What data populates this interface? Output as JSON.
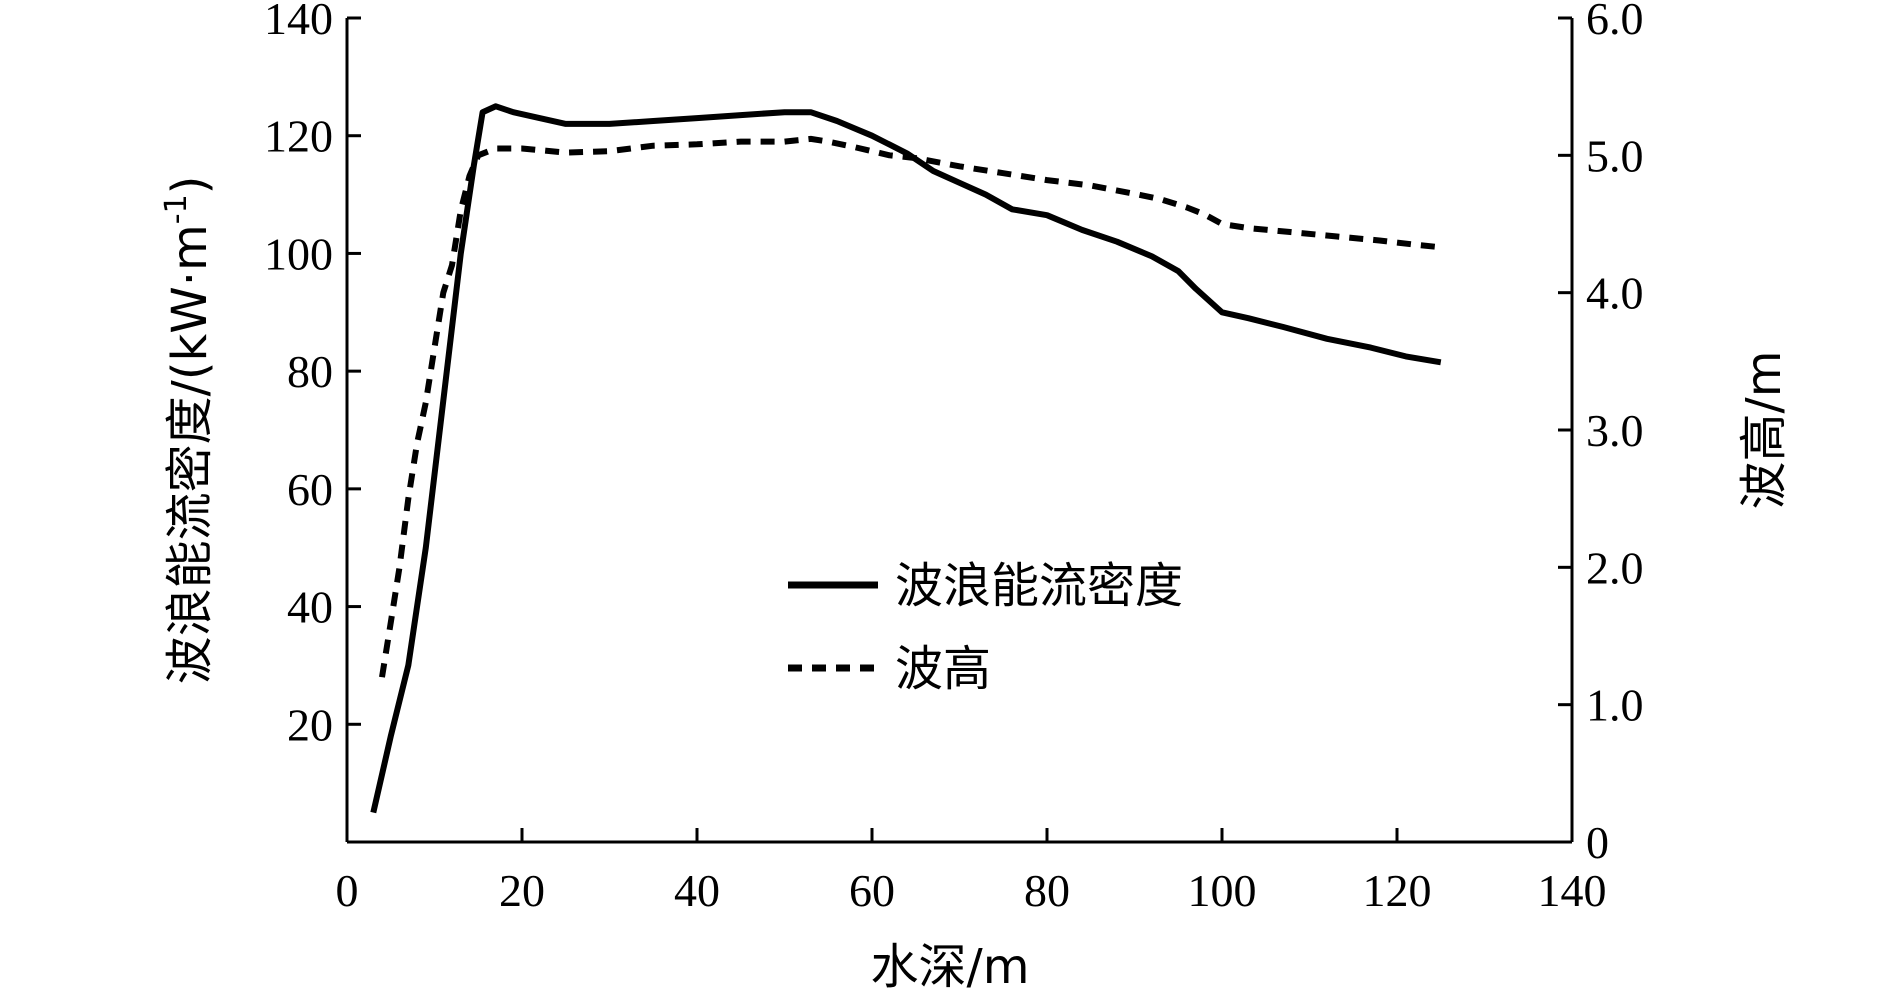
{
  "chart_data": {
    "type": "line",
    "xlabel": "水深/m",
    "ylabel_left": "波浪能流密度/(kW·m",
    "ylabel_left_sup": "-1",
    "ylabel_left_close": ")",
    "ylabel_right": "波高/m",
    "xlim": [
      0,
      140
    ],
    "ylim_left": [
      0,
      140
    ],
    "ylim_right": [
      0,
      6.0
    ],
    "x_ticks": [
      "0",
      "20",
      "40",
      "60",
      "80",
      "100",
      "120",
      "140"
    ],
    "x_tick_values": [
      0,
      20,
      40,
      60,
      80,
      100,
      120,
      140
    ],
    "y_left_ticks": [
      "20",
      "40",
      "60",
      "80",
      "100",
      "120",
      "140"
    ],
    "y_left_tick_values": [
      20,
      40,
      60,
      80,
      100,
      120,
      140
    ],
    "y_right_ticks": [
      "0",
      "1.0",
      "2.0",
      "3.0",
      "4.0",
      "5.0",
      "6.0"
    ],
    "y_right_tick_values": [
      0,
      1,
      2,
      3,
      4,
      5,
      6
    ],
    "legend_position": "center",
    "series": [
      {
        "name": "波浪能流密度",
        "axis": "left",
        "style": "solid",
        "color": "#000000",
        "points": [
          [
            3,
            5
          ],
          [
            5,
            18
          ],
          [
            7,
            30
          ],
          [
            9,
            50
          ],
          [
            11,
            75
          ],
          [
            13,
            100
          ],
          [
            14.5,
            115
          ],
          [
            15.5,
            124
          ],
          [
            17,
            125
          ],
          [
            19,
            124
          ],
          [
            22,
            123
          ],
          [
            25,
            122
          ],
          [
            30,
            122
          ],
          [
            35,
            122.5
          ],
          [
            40,
            123
          ],
          [
            45,
            123.5
          ],
          [
            50,
            124
          ],
          [
            53,
            124
          ],
          [
            56,
            122.5
          ],
          [
            60,
            120
          ],
          [
            64,
            117
          ],
          [
            67,
            114
          ],
          [
            70,
            112
          ],
          [
            73,
            110
          ],
          [
            76,
            107.5
          ],
          [
            80,
            106.5
          ],
          [
            84,
            104
          ],
          [
            88,
            102
          ],
          [
            92,
            99.5
          ],
          [
            95,
            97
          ],
          [
            97,
            94
          ],
          [
            100,
            90
          ],
          [
            103,
            89
          ],
          [
            107,
            87.5
          ],
          [
            112,
            85.5
          ],
          [
            117,
            84
          ],
          [
            121,
            82.5
          ],
          [
            125,
            81.5
          ]
        ]
      },
      {
        "name": "波高",
        "axis": "right",
        "style": "dashed",
        "color": "#000000",
        "points": [
          [
            4,
            1.2
          ],
          [
            5,
            1.6
          ],
          [
            6,
            2.0
          ],
          [
            7,
            2.5
          ],
          [
            8,
            2.9
          ],
          [
            9,
            3.2
          ],
          [
            10,
            3.6
          ],
          [
            11,
            4.0
          ],
          [
            12,
            4.2
          ],
          [
            13,
            4.6
          ],
          [
            14,
            4.85
          ],
          [
            15,
            5.0
          ],
          [
            17,
            5.05
          ],
          [
            20,
            5.05
          ],
          [
            25,
            5.02
          ],
          [
            30,
            5.03
          ],
          [
            35,
            5.07
          ],
          [
            40,
            5.08
          ],
          [
            45,
            5.1
          ],
          [
            50,
            5.1
          ],
          [
            53,
            5.12
          ],
          [
            55,
            5.1
          ],
          [
            58,
            5.06
          ],
          [
            62,
            5.0
          ],
          [
            65,
            4.98
          ],
          [
            70,
            4.92
          ],
          [
            75,
            4.87
          ],
          [
            80,
            4.82
          ],
          [
            85,
            4.78
          ],
          [
            90,
            4.72
          ],
          [
            93,
            4.68
          ],
          [
            96,
            4.62
          ],
          [
            98,
            4.57
          ],
          [
            100,
            4.5
          ],
          [
            103,
            4.47
          ],
          [
            108,
            4.44
          ],
          [
            113,
            4.41
          ],
          [
            118,
            4.38
          ],
          [
            122,
            4.35
          ],
          [
            125,
            4.33
          ]
        ]
      }
    ]
  }
}
